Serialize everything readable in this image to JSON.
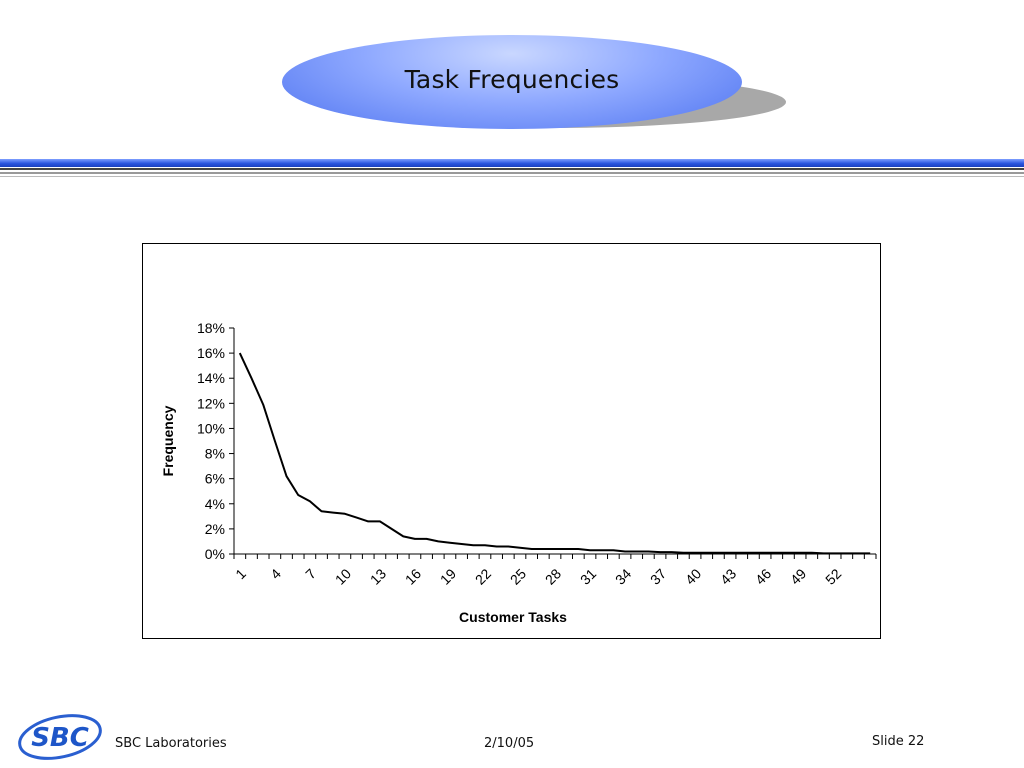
{
  "slide": {
    "title": "Task Frequencies",
    "footer": {
      "organization": "SBC Laboratories",
      "date": "2/10/05",
      "slide_number": "Slide 22",
      "logo_text": "SBC"
    }
  },
  "chart_data": {
    "type": "line",
    "title": "",
    "xlabel": "Customer Tasks",
    "ylabel": "Frequency",
    "ylim": [
      0,
      0.18
    ],
    "y_ticks": [
      "0%",
      "2%",
      "4%",
      "6%",
      "8%",
      "10%",
      "12%",
      "14%",
      "16%",
      "18%"
    ],
    "x_tick_labels": [
      "1",
      "4",
      "7",
      "10",
      "13",
      "16",
      "19",
      "22",
      "25",
      "28",
      "31",
      "34",
      "37",
      "40",
      "43",
      "46",
      "49",
      "52"
    ],
    "x": [
      1,
      2,
      3,
      4,
      5,
      6,
      7,
      8,
      9,
      10,
      11,
      12,
      13,
      14,
      15,
      16,
      17,
      18,
      19,
      20,
      21,
      22,
      23,
      24,
      25,
      26,
      27,
      28,
      29,
      30,
      31,
      32,
      33,
      34,
      35,
      36,
      37,
      38,
      39,
      40,
      41,
      42,
      43,
      44,
      45,
      46,
      47,
      48,
      49,
      50,
      51,
      52,
      53,
      54,
      55
    ],
    "series": [
      {
        "name": "",
        "values": [
          0.16,
          0.14,
          0.119,
          0.09,
          0.062,
          0.047,
          0.042,
          0.034,
          0.033,
          0.032,
          0.029,
          0.026,
          0.026,
          0.02,
          0.014,
          0.012,
          0.012,
          0.01,
          0.009,
          0.008,
          0.007,
          0.007,
          0.006,
          0.006,
          0.005,
          0.004,
          0.004,
          0.004,
          0.004,
          0.004,
          0.003,
          0.003,
          0.003,
          0.002,
          0.002,
          0.002,
          0.0015,
          0.0015,
          0.001,
          0.001,
          0.001,
          0.001,
          0.001,
          0.001,
          0.001,
          0.001,
          0.001,
          0.001,
          0.001,
          0.001,
          0.0005,
          0.0005,
          0.0005,
          0.0005,
          0.0005
        ]
      }
    ],
    "grid": false,
    "legend": "none"
  }
}
